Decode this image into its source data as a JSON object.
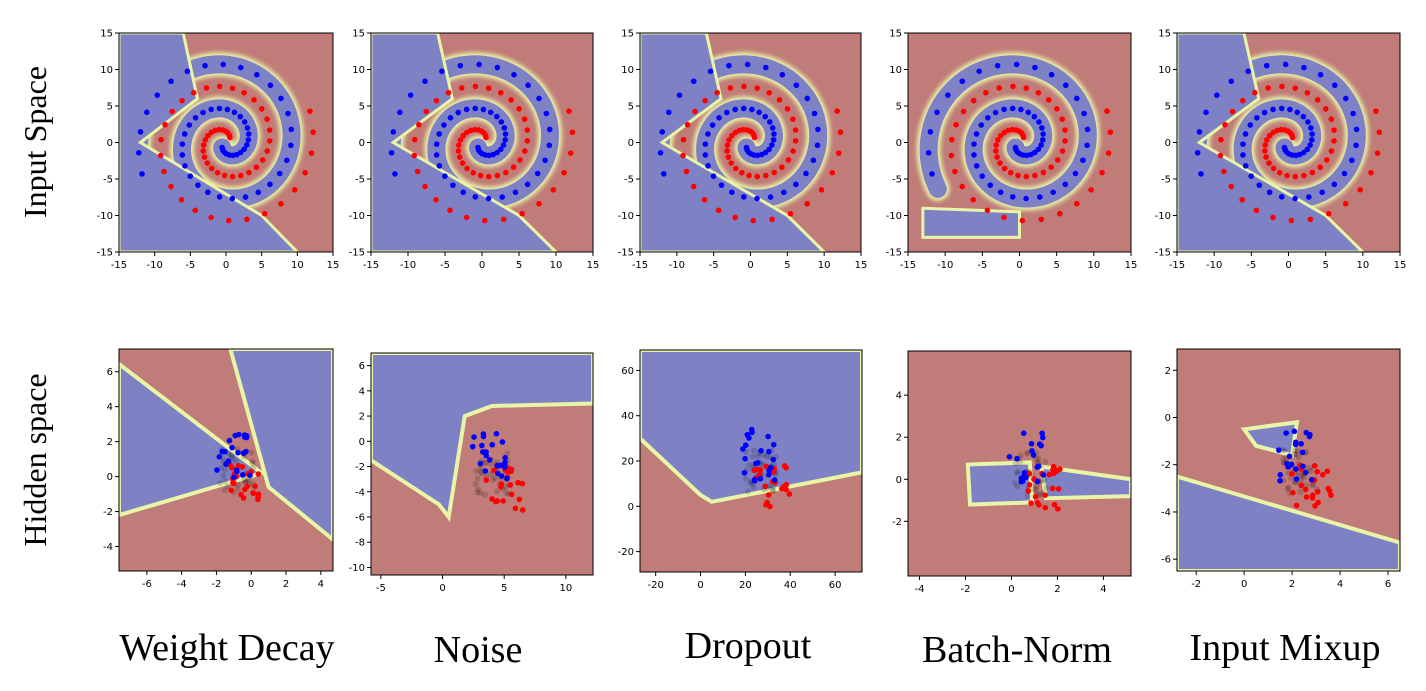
{
  "row_labels": [
    "Input Space",
    "Hidden space"
  ],
  "column_labels": [
    "Weight Decay",
    "Noise",
    "Dropout",
    "Batch-Norm",
    "Input Mixup"
  ],
  "colors": {
    "class_red": "#ff0000",
    "class_blue": "#0000ff",
    "hidden_point": "#000000",
    "region_red": "#c07c78",
    "region_blue": "#7f81c5",
    "boundary_glow": "#e8f4a6"
  },
  "chart_data": [
    {
      "type": "scatter",
      "panel": "input-weight-decay",
      "xlim": [
        -15,
        15
      ],
      "ylim": [
        -15,
        15
      ],
      "xticks": [
        "-15",
        "-10",
        "-5",
        "0",
        "5",
        "10",
        "15"
      ],
      "yticks": [
        "-15",
        "-10",
        "-5",
        "0",
        "5",
        "10",
        "15"
      ],
      "series": [
        {
          "class": "red",
          "points": "two-spiral"
        },
        {
          "class": "blue",
          "points": "two-spiral"
        }
      ]
    },
    {
      "type": "scatter",
      "panel": "input-noise",
      "xlim": [
        -15,
        15
      ],
      "ylim": [
        -15,
        15
      ],
      "xticks": [
        "-15",
        "-10",
        "-5",
        "0",
        "5",
        "10",
        "15"
      ],
      "yticks": [
        "-15",
        "-10",
        "-5",
        "0",
        "5",
        "10",
        "15"
      ]
    },
    {
      "type": "scatter",
      "panel": "input-dropout",
      "xlim": [
        -15,
        15
      ],
      "ylim": [
        -15,
        15
      ],
      "xticks": [
        "-15",
        "-10",
        "-5",
        "0",
        "5",
        "10",
        "15"
      ],
      "yticks": [
        "-15",
        "-10",
        "-5",
        "0",
        "5",
        "10",
        "15"
      ]
    },
    {
      "type": "scatter",
      "panel": "input-batch-norm",
      "xlim": [
        -15,
        15
      ],
      "ylim": [
        -15,
        15
      ],
      "xticks": [
        "-15",
        "-10",
        "-5",
        "0",
        "5",
        "10",
        "15"
      ],
      "yticks": [
        "-15",
        "-10",
        "-5",
        "0",
        "5",
        "10",
        "15"
      ]
    },
    {
      "type": "scatter",
      "panel": "input-mixup",
      "xlim": [
        -15,
        15
      ],
      "ylim": [
        -15,
        15
      ],
      "xticks": [
        "-15",
        "-10",
        "-5",
        "0",
        "5",
        "10",
        "15"
      ],
      "yticks": [
        "-15",
        "-10",
        "-5",
        "0",
        "5",
        "10",
        "15"
      ]
    },
    {
      "type": "scatter",
      "panel": "hidden-weight-decay",
      "xlim": [
        -7.6,
        4.7
      ],
      "ylim": [
        -5.4,
        7.3
      ],
      "xticks": [
        "-6",
        "-4",
        "-2",
        "0",
        "2",
        "4"
      ],
      "yticks": [
        "-4",
        "-2",
        "0",
        "2",
        "4",
        "6"
      ]
    },
    {
      "type": "scatter",
      "panel": "hidden-noise",
      "xlim": [
        -5.8,
        12.2
      ],
      "ylim": [
        -10.6,
        7.0
      ],
      "xticks": [
        "-5",
        "0",
        "5",
        "10"
      ],
      "yticks": [
        "-10",
        "-8",
        "-6",
        "-4",
        "-2",
        "0",
        "2",
        "4",
        "6"
      ]
    },
    {
      "type": "scatter",
      "panel": "hidden-dropout",
      "xlim": [
        -27,
        72
      ],
      "ylim": [
        -29,
        69
      ],
      "xticks": [
        "-20",
        "0",
        "20",
        "40",
        "60"
      ],
      "yticks": [
        "-20",
        "0",
        "20",
        "40",
        "60"
      ]
    },
    {
      "type": "scatter",
      "panel": "hidden-batch-norm",
      "xlim": [
        -4.5,
        5.2
      ],
      "ylim": [
        -4.6,
        6.1
      ],
      "xticks": [
        "-4",
        "-2",
        "0",
        "2",
        "4"
      ],
      "yticks": [
        "-2",
        "0",
        "2",
        "4"
      ]
    },
    {
      "type": "scatter",
      "panel": "hidden-mixup",
      "xlim": [
        -2.8,
        6.5
      ],
      "ylim": [
        -6.5,
        2.9
      ],
      "xticks": [
        "-2",
        "0",
        "2",
        "4",
        "6"
      ],
      "yticks": [
        "-6",
        "-4",
        "-2",
        "0",
        "2"
      ]
    }
  ]
}
